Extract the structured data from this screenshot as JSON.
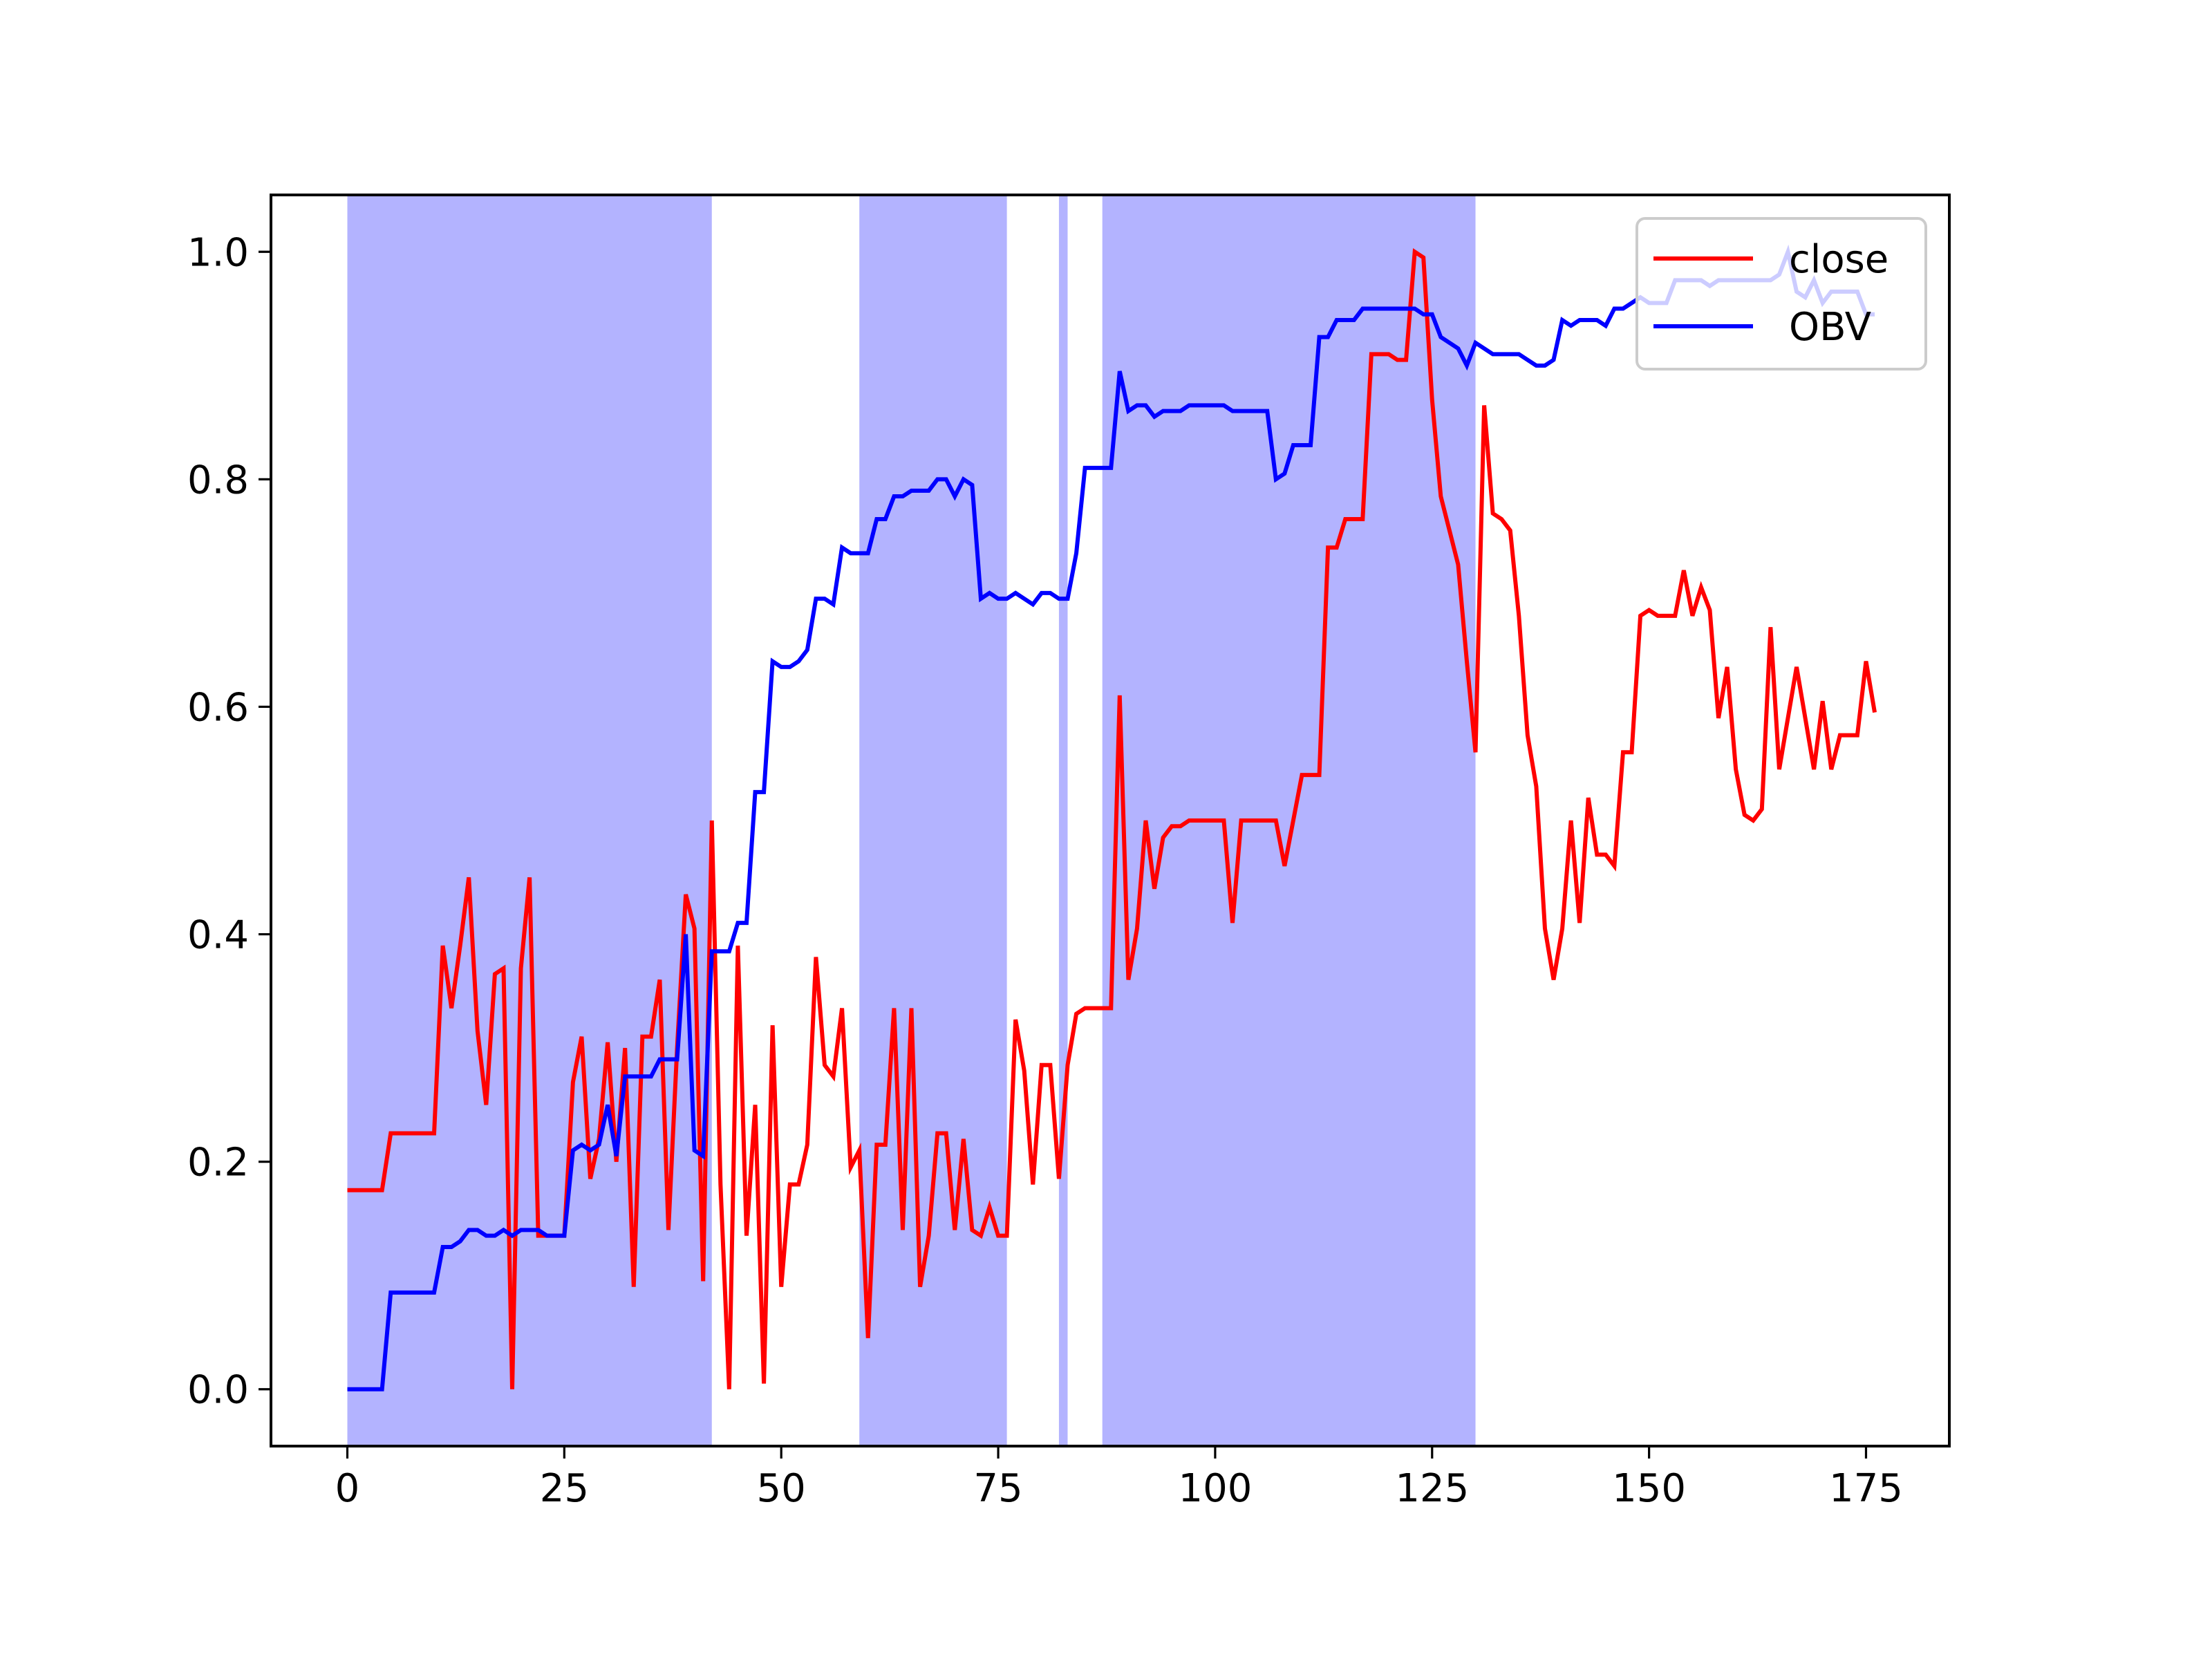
{
  "chart_data": {
    "type": "line",
    "x": [
      0,
      1,
      2,
      3,
      4,
      5,
      6,
      7,
      8,
      9,
      10,
      11,
      12,
      13,
      14,
      15,
      16,
      17,
      18,
      19,
      20,
      21,
      22,
      23,
      24,
      25,
      26,
      27,
      28,
      29,
      30,
      31,
      32,
      33,
      34,
      35,
      36,
      37,
      38,
      39,
      40,
      41,
      42,
      43,
      44,
      45,
      46,
      47,
      48,
      49,
      50,
      51,
      52,
      53,
      54,
      55,
      56,
      57,
      58,
      59,
      60,
      61,
      62,
      63,
      64,
      65,
      66,
      67,
      68,
      69,
      70,
      71,
      72,
      73,
      74,
      75,
      76,
      77,
      78,
      79,
      80,
      81,
      82,
      83,
      84,
      85,
      86,
      87,
      88,
      89,
      90,
      91,
      92,
      93,
      94,
      95,
      96,
      97,
      98,
      99,
      100,
      101,
      102,
      103,
      104,
      105,
      106,
      107,
      108,
      109,
      110,
      111,
      112,
      113,
      114,
      115,
      116,
      117,
      118,
      119,
      120,
      121,
      122,
      123,
      124,
      125,
      126,
      127,
      128,
      129,
      130,
      131,
      132,
      133,
      134,
      135,
      136,
      137,
      138,
      139,
      140,
      141,
      142,
      143,
      144,
      145,
      146,
      147,
      148,
      149,
      150,
      151,
      152,
      153,
      154,
      155,
      156,
      157,
      158,
      159,
      160,
      161,
      162,
      163,
      164,
      165,
      166,
      167,
      168,
      169,
      170,
      171,
      172,
      173,
      174,
      175,
      176
    ],
    "series": [
      {
        "name": "close",
        "color": "#ff0000",
        "values": [
          0.175,
          0.175,
          0.175,
          0.175,
          0.175,
          0.225,
          0.225,
          0.225,
          0.225,
          0.225,
          0.225,
          0.39,
          0.335,
          0.39,
          0.45,
          0.315,
          0.25,
          0.365,
          0.37,
          0.0,
          0.37,
          0.45,
          0.135,
          0.135,
          0.135,
          0.135,
          0.27,
          0.31,
          0.185,
          0.22,
          0.305,
          0.2,
          0.3,
          0.09,
          0.31,
          0.31,
          0.36,
          0.14,
          0.3,
          0.435,
          0.405,
          0.095,
          0.5,
          0.18,
          0.0,
          0.39,
          0.135,
          0.25,
          0.005,
          0.32,
          0.09,
          0.18,
          0.18,
          0.215,
          0.38,
          0.285,
          0.275,
          0.335,
          0.195,
          0.21,
          0.045,
          0.215,
          0.215,
          0.335,
          0.14,
          0.335,
          0.09,
          0.135,
          0.225,
          0.225,
          0.14,
          0.22,
          0.14,
          0.135,
          0.16,
          0.135,
          0.135,
          0.325,
          0.28,
          0.18,
          0.285,
          0.285,
          0.185,
          0.285,
          0.33,
          0.335,
          0.335,
          0.335,
          0.335,
          0.61,
          0.36,
          0.405,
          0.5,
          0.44,
          0.485,
          0.495,
          0.495,
          0.5,
          0.5,
          0.5,
          0.5,
          0.5,
          0.41,
          0.5,
          0.5,
          0.5,
          0.5,
          0.5,
          0.46,
          0.5,
          0.54,
          0.54,
          0.54,
          0.74,
          0.74,
          0.765,
          0.765,
          0.765,
          0.91,
          0.91,
          0.91,
          0.905,
          0.905,
          1.0,
          0.995,
          0.87,
          0.785,
          0.755,
          0.725,
          0.64,
          0.56,
          0.865,
          0.77,
          0.765,
          0.755,
          0.68,
          0.575,
          0.53,
          0.405,
          0.36,
          0.405,
          0.5,
          0.41,
          0.52,
          0.47,
          0.47,
          0.46,
          0.56,
          0.56,
          0.68,
          0.685,
          0.68,
          0.68,
          0.68,
          0.72,
          0.68,
          0.705,
          0.685,
          0.59,
          0.635,
          0.545,
          0.505,
          0.5,
          0.51,
          0.67,
          0.545,
          0.59,
          0.635,
          0.59,
          0.545,
          0.605,
          0.545,
          0.575,
          0.575,
          0.575,
          0.64,
          0.595
        ]
      },
      {
        "name": "OBV",
        "color": "#0000ff",
        "values": [
          0,
          0,
          0,
          0,
          0,
          0.085,
          0.085,
          0.085,
          0.085,
          0.085,
          0.085,
          0.125,
          0.125,
          0.13,
          0.14,
          0.14,
          0.135,
          0.135,
          0.14,
          0.135,
          0.14,
          0.14,
          0.14,
          0.135,
          0.135,
          0.135,
          0.21,
          0.215,
          0.21,
          0.215,
          0.25,
          0.205,
          0.275,
          0.275,
          0.275,
          0.275,
          0.29,
          0.29,
          0.29,
          0.4,
          0.21,
          0.205,
          0.385,
          0.385,
          0.385,
          0.41,
          0.41,
          0.525,
          0.525,
          0.64,
          0.635,
          0.635,
          0.64,
          0.65,
          0.695,
          0.695,
          0.69,
          0.74,
          0.735,
          0.735,
          0.735,
          0.765,
          0.765,
          0.785,
          0.785,
          0.79,
          0.79,
          0.79,
          0.8,
          0.8,
          0.785,
          0.8,
          0.795,
          0.695,
          0.7,
          0.695,
          0.695,
          0.7,
          0.695,
          0.69,
          0.7,
          0.7,
          0.695,
          0.695,
          0.735,
          0.81,
          0.81,
          0.81,
          0.81,
          0.895,
          0.86,
          0.865,
          0.865,
          0.855,
          0.86,
          0.86,
          0.86,
          0.865,
          0.865,
          0.865,
          0.865,
          0.865,
          0.86,
          0.86,
          0.86,
          0.86,
          0.86,
          0.8,
          0.805,
          0.83,
          0.83,
          0.83,
          0.925,
          0.925,
          0.94,
          0.94,
          0.94,
          0.95,
          0.95,
          0.95,
          0.95,
          0.95,
          0.95,
          0.95,
          0.945,
          0.945,
          0.925,
          0.92,
          0.915,
          0.9,
          0.92,
          0.915,
          0.91,
          0.91,
          0.91,
          0.91,
          0.905,
          0.9,
          0.9,
          0.905,
          0.94,
          0.935,
          0.94,
          0.94,
          0.94,
          0.935,
          0.95,
          0.95,
          0.955,
          0.96,
          0.955,
          0.955,
          0.955,
          0.975,
          0.975,
          0.975,
          0.975,
          0.97,
          0.975,
          0.975,
          0.975,
          0.975,
          0.975,
          0.975,
          0.975,
          0.98,
          1.0,
          0.965,
          0.96,
          0.975,
          0.955,
          0.965,
          0.965,
          0.965,
          0.965,
          0.945,
          0.945
        ]
      }
    ],
    "shaded_regions": [
      [
        0,
        42
      ],
      [
        59,
        76
      ],
      [
        82,
        83
      ],
      [
        87,
        130
      ]
    ],
    "shade_color": "#b3b3ff",
    "xlim": [
      -8.8,
      184.6
    ],
    "ylim": [
      -0.05,
      1.05
    ],
    "xticks": [
      0,
      25,
      50,
      75,
      100,
      125,
      150,
      175
    ],
    "yticks": [
      {
        "value": 0,
        "label": "0.0"
      },
      0.2,
      0.4,
      0.6,
      0.8,
      {
        "value": 1,
        "label": "1.0"
      }
    ],
    "legend": "upper right"
  }
}
